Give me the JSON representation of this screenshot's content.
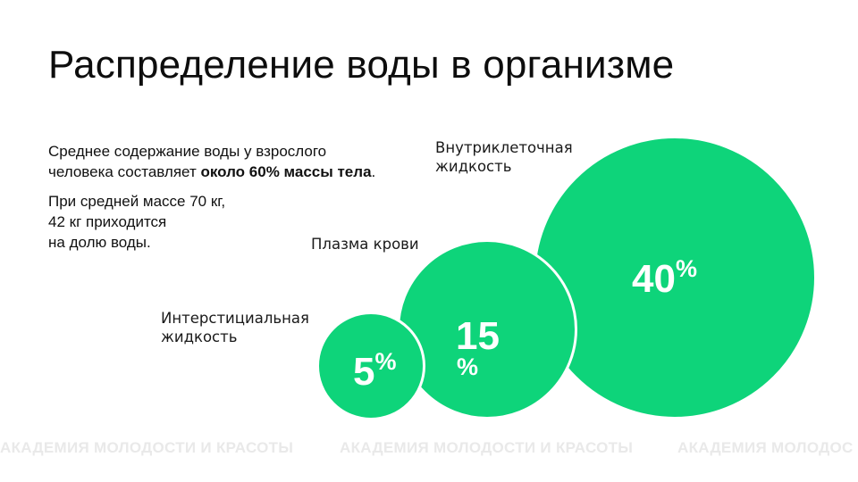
{
  "title": "Распределение воды в организме",
  "intro": {
    "p1_start": "Среднее содержание воды у взрослого человека составляет ",
    "p1_bold": "около 60% массы тела",
    "p1_end": ".",
    "p2_line1": "При средней массе 70 кг,",
    "p2_line2": "42 кг приходится",
    "p2_line3": "на долю воды."
  },
  "bubbles": {
    "intracellular": {
      "value": "40",
      "unit": "%",
      "label_line1": "Внутриклеточная",
      "label_line2": "жидкость"
    },
    "plasma": {
      "value": "15",
      "unit": "%",
      "label_line1": "Плазма крови"
    },
    "interstitial": {
      "value": "5",
      "unit": "%",
      "label_line1": "Интерстициальная",
      "label_line2": "жидкость"
    }
  },
  "watermark": {
    "text1": "АКАДЕМИЯ МОЛОДОСТИ И КРАСОТЫ",
    "text2": "АКАДЕМИЯ МОЛОДОСТИ И КРАСОТЫ",
    "text3": "АКАДЕМИЯ МОЛОДОС"
  },
  "colors": {
    "bubble": "#0ed47a",
    "text": "#111111",
    "watermark": "#e9e9e9"
  }
}
